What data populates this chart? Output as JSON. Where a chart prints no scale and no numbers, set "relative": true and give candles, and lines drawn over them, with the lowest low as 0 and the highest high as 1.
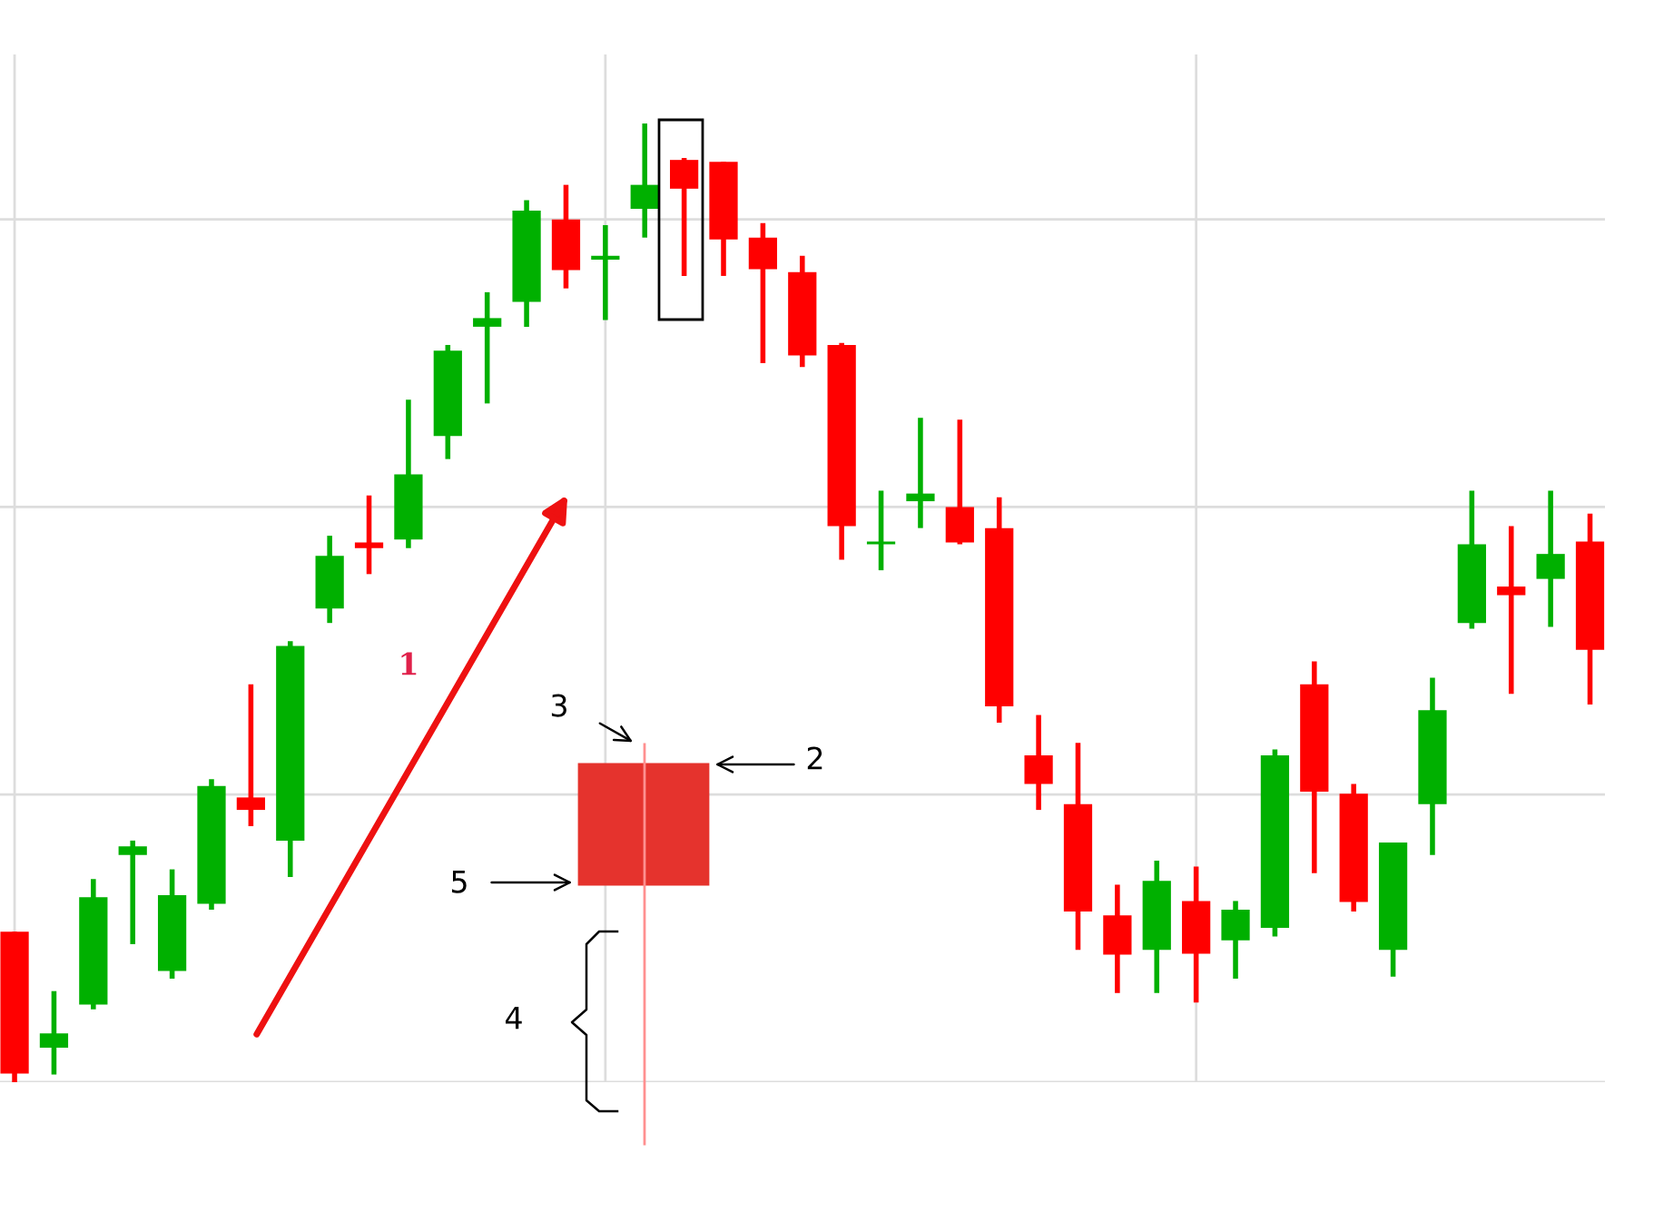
{
  "chart_data": {
    "type": "candlestick",
    "relative": true,
    "grid": true,
    "tick_labels": false,
    "categories": [
      null,
      null,
      null,
      null,
      null,
      null,
      null,
      null,
      null,
      null,
      null,
      null,
      null,
      null,
      null,
      null,
      null,
      null,
      null,
      null,
      null,
      null,
      null,
      null,
      null,
      null,
      null,
      null,
      null,
      null,
      null,
      null,
      null,
      null,
      null,
      null,
      null,
      null,
      null,
      null,
      null
    ],
    "ohlc": [
      [
        0.157,
        0.157,
        0,
        0.009
      ],
      [
        0.036,
        0.095,
        0.008,
        0.051
      ],
      [
        0.081,
        0.212,
        0.076,
        0.193
      ],
      [
        0.237,
        0.252,
        0.144,
        0.246
      ],
      [
        0.116,
        0.222,
        0.108,
        0.195
      ],
      [
        0.186,
        0.316,
        0.18,
        0.309
      ],
      [
        0.297,
        0.415,
        0.267,
        0.284
      ],
      [
        0.252,
        0.46,
        0.214,
        0.455
      ],
      [
        0.494,
        0.57,
        0.479,
        0.549
      ],
      [
        0.563,
        0.612,
        0.53,
        0.557
      ],
      [
        0.566,
        0.712,
        0.557,
        0.634
      ],
      [
        0.674,
        0.769,
        0.65,
        0.763
      ],
      [
        0.788,
        0.824,
        0.708,
        0.797
      ],
      [
        0.814,
        0.92,
        0.788,
        0.909
      ],
      [
        0.9,
        0.936,
        0.828,
        0.847
      ],
      [
        0.858,
        0.894,
        0.795,
        0.862
      ],
      [
        0.911,
        1,
        0.881,
        0.936
      ],
      [
        0.962,
        0.964,
        0.841,
        0.932
      ],
      [
        0.96,
        0.96,
        0.841,
        0.879
      ],
      [
        0.881,
        0.896,
        0.75,
        0.848
      ],
      [
        0.845,
        0.862,
        0.746,
        0.758
      ],
      [
        0.769,
        0.771,
        0.545,
        0.58
      ],
      [
        0.561,
        0.617,
        0.534,
        0.564
      ],
      [
        0.606,
        0.693,
        0.578,
        0.614
      ],
      [
        0.6,
        0.691,
        0.561,
        0.563
      ],
      [
        0.578,
        0.61,
        0.375,
        0.392
      ],
      [
        0.341,
        0.383,
        0.284,
        0.311
      ],
      [
        0.29,
        0.354,
        0.138,
        0.178
      ],
      [
        0.174,
        0.206,
        0.093,
        0.133
      ],
      [
        0.138,
        0.231,
        0.093,
        0.21
      ],
      [
        0.189,
        0.225,
        0.083,
        0.134
      ],
      [
        0.148,
        0.189,
        0.108,
        0.18
      ],
      [
        0.161,
        0.347,
        0.152,
        0.341
      ],
      [
        0.415,
        0.439,
        0.218,
        0.303
      ],
      [
        0.301,
        0.311,
        0.178,
        0.188
      ],
      [
        0.138,
        0.25,
        0.11,
        0.25
      ],
      [
        0.29,
        0.422,
        0.237,
        0.388
      ],
      [
        0.479,
        0.617,
        0.473,
        0.561
      ],
      [
        0.517,
        0.58,
        0.405,
        0.508
      ],
      [
        0.525,
        0.617,
        0.475,
        0.551
      ],
      [
        0.564,
        0.593,
        0.394,
        0.451
      ]
    ],
    "colors": [
      "#ff0000",
      "#00b000",
      "#00b000",
      "#00b000",
      "#00b000",
      "#00b000",
      "#ff0000",
      "#00b000",
      "#00b000",
      "#ff0000",
      "#00b000",
      "#00b000",
      "#00b000",
      "#00b000",
      "#ff0000",
      "#00b000",
      "#00b000",
      "#ff0000",
      "#ff0000",
      "#ff0000",
      "#ff0000",
      "#ff0000",
      "#00b000",
      "#00b000",
      "#ff0000",
      "#ff0000",
      "#ff0000",
      "#ff0000",
      "#ff0000",
      "#00b000",
      "#ff0000",
      "#00b000",
      "#00b000",
      "#ff0000",
      "#ff0000",
      "#00b000",
      "#00b000",
      "#00b000",
      "#ff0000",
      "#00b000",
      "#ff0000"
    ],
    "annotations": [
      "1",
      "2",
      "3",
      "4",
      "5"
    ]
  }
}
